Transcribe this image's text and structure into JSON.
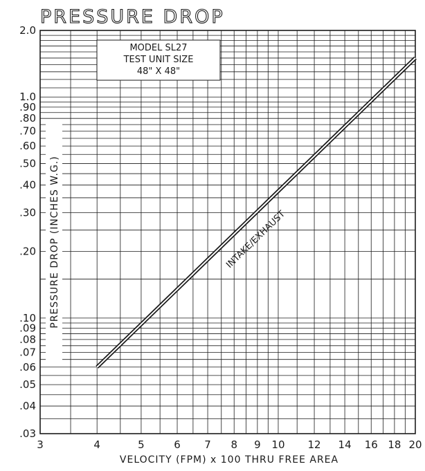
{
  "chart_data": {
    "type": "line",
    "title": "PRESSURE DROP",
    "xlabel": "VELOCITY (FPM) x 100 THRU FREE AREA",
    "ylabel": "PRESSURE DROP (INCHES W.G.)",
    "x_scale": "log",
    "y_scale": "log",
    "xlim": [
      3,
      20
    ],
    "ylim": [
      0.03,
      2.0
    ],
    "grid": true,
    "x_ticks": [
      {
        "value": 3,
        "label": "3"
      },
      {
        "value": 4,
        "label": "4"
      },
      {
        "value": 5,
        "label": "5"
      },
      {
        "value": 6,
        "label": "6"
      },
      {
        "value": 7,
        "label": "7"
      },
      {
        "value": 8,
        "label": "8"
      },
      {
        "value": 9,
        "label": "9"
      },
      {
        "value": 10,
        "label": "10"
      },
      {
        "value": 12,
        "label": "12"
      },
      {
        "value": 14,
        "label": "14"
      },
      {
        "value": 16,
        "label": "16"
      },
      {
        "value": 18,
        "label": "18"
      },
      {
        "value": 20,
        "label": "20"
      }
    ],
    "y_ticks": [
      {
        "value": 0.03,
        "label": ".03"
      },
      {
        "value": 0.04,
        "label": ".04"
      },
      {
        "value": 0.05,
        "label": ".05"
      },
      {
        "value": 0.06,
        "label": ".06"
      },
      {
        "value": 0.07,
        "label": ".07"
      },
      {
        "value": 0.08,
        "label": ".08"
      },
      {
        "value": 0.09,
        "label": ".09"
      },
      {
        "value": 0.1,
        "label": ".10"
      },
      {
        "value": 0.2,
        "label": ".20"
      },
      {
        "value": 0.3,
        "label": ".30"
      },
      {
        "value": 0.4,
        "label": ".40"
      },
      {
        "value": 0.5,
        "label": ".50"
      },
      {
        "value": 0.6,
        "label": ".60"
      },
      {
        "value": 0.7,
        "label": ".70"
      },
      {
        "value": 0.8,
        "label": ".80"
      },
      {
        "value": 0.9,
        "label": ".90"
      },
      {
        "value": 1.0,
        "label": "1.0"
      },
      {
        "value": 2.0,
        "label": "2.0"
      }
    ],
    "series": [
      {
        "name": "INTAKE/EXHAUST",
        "x": [
          4,
          20
        ],
        "y": [
          0.06,
          1.5
        ]
      }
    ],
    "annotation": [
      "MODEL SL27",
      "TEST UNIT SIZE",
      "48\" X 48\""
    ]
  }
}
